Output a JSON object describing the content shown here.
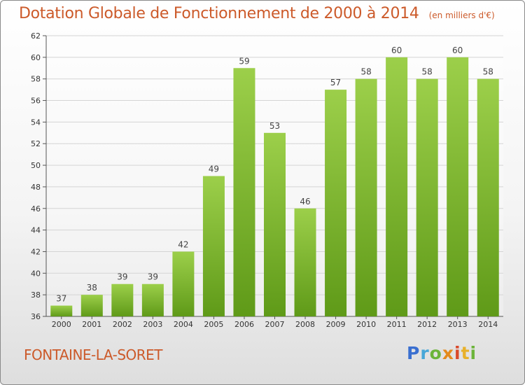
{
  "chart_data": {
    "type": "bar",
    "title": "Dotation Globale de Fonctionnement de 2000 à 2014",
    "subtitle": "(en milliers d'€)",
    "categories": [
      "2000",
      "2001",
      "2002",
      "2003",
      "2004",
      "2005",
      "2006",
      "2007",
      "2008",
      "2009",
      "2010",
      "2011",
      "2012",
      "2013",
      "2014"
    ],
    "values": [
      37,
      38,
      39,
      39,
      42,
      49,
      59,
      53,
      46,
      57,
      58,
      60,
      58,
      60,
      58
    ],
    "ylim": [
      36,
      62
    ],
    "yticks": [
      36,
      38,
      40,
      42,
      44,
      46,
      48,
      50,
      52,
      54,
      56,
      58,
      60,
      62
    ],
    "grid": true,
    "bar_color_top": "#9ccf4a",
    "bar_color_bottom": "#5f9a18"
  },
  "footer": {
    "commune": "FONTAINE-LA-SORET",
    "logo_text": "Proxiti"
  }
}
